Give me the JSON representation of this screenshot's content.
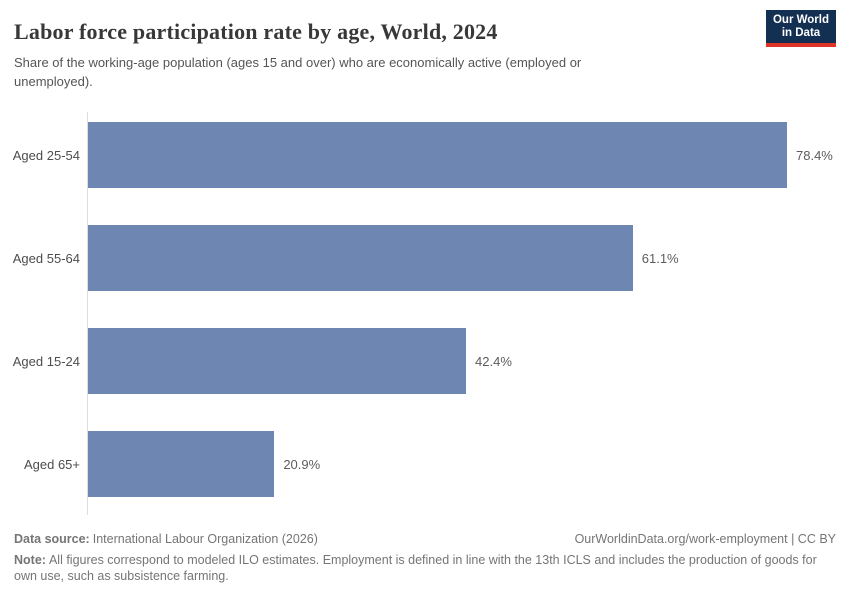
{
  "header": {
    "title": "Labor force participation rate by age, World, 2024",
    "subtitle": "Share of the working-age population (ages 15 and over) who are economically active (employed or unemployed).",
    "logo": {
      "line1": "Our World",
      "line2": "in Data"
    }
  },
  "chart_data": {
    "type": "bar",
    "orientation": "horizontal",
    "title": "Labor force participation rate by age, World, 2024",
    "categories": [
      "Aged 25-54",
      "Aged 55-64",
      "Aged 15-24",
      "Aged 65+"
    ],
    "values": [
      78.4,
      61.1,
      42.4,
      20.9
    ],
    "value_labels": [
      "78.4%",
      "61.1%",
      "42.4%",
      "20.9%"
    ],
    "unit": "%",
    "xlim": [
      0,
      78.4
    ],
    "grid": false,
    "legend": "none",
    "bar_color": "#6e87b2",
    "axis_line_color": "#dedede"
  },
  "footer": {
    "source_label": "Data source:",
    "source_text": "International Labour Organization (2026)",
    "link_text": "OurWorldinData.org/work-employment | CC BY",
    "note_label": "Note:",
    "note_text": "All figures correspond to modeled ILO estimates. Employment is defined in line with the 13th ICLS and includes the production of goods for own use, such as subsistence farming."
  }
}
